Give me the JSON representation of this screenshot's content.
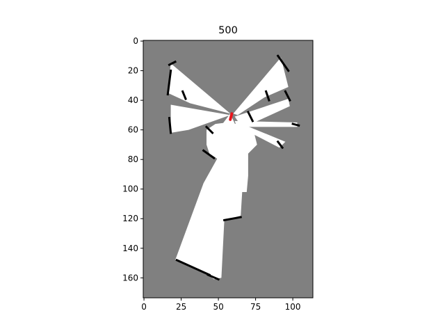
{
  "chart_data": {
    "type": "heatmap",
    "title": "500",
    "xlabel": "",
    "ylabel": "",
    "xlim": [
      -0.5,
      113.5
    ],
    "ylim": [
      173.5,
      -0.5
    ],
    "x_ticks": [
      0,
      25,
      50,
      75,
      100
    ],
    "y_ticks": [
      0,
      20,
      40,
      60,
      80,
      100,
      120,
      140,
      160
    ],
    "grid": false,
    "legend": "none",
    "colors": {
      "unknown": "#808080",
      "free": "#ffffff",
      "occupied": "#000000",
      "robot": "#e8141b"
    },
    "free_regions": [
      {
        "name": "free-region-south-cone",
        "polygon": [
          [
            58,
            49
          ],
          [
            70,
            76
          ],
          [
            70,
            91
          ],
          [
            69,
            102
          ],
          [
            66,
            102
          ],
          [
            65,
            118
          ],
          [
            54,
            121
          ],
          [
            52,
            160
          ],
          [
            47,
            161
          ],
          [
            43,
            158
          ],
          [
            21,
            148
          ],
          [
            40,
            96
          ],
          [
            50,
            78
          ],
          [
            49,
            61
          ]
        ]
      },
      {
        "name": "free-region-northwest-ray",
        "polygon": [
          [
            58,
            49
          ],
          [
            18,
            15
          ],
          [
            16,
            35
          ],
          [
            31,
            42
          ]
        ]
      },
      {
        "name": "free-region-west-ray",
        "polygon": [
          [
            58,
            50
          ],
          [
            18,
            43
          ],
          [
            18,
            62
          ],
          [
            30,
            60
          ]
        ]
      },
      {
        "name": "free-region-northeast-ray",
        "polygon": [
          [
            60,
            49
          ],
          [
            92,
            11
          ],
          [
            97,
            31
          ],
          [
            81,
            38
          ],
          [
            63,
            50
          ]
        ]
      },
      {
        "name": "free-region-east-upper-ray",
        "polygon": [
          [
            61,
            51
          ],
          [
            97,
            39
          ],
          [
            98,
            44
          ],
          [
            72,
            56
          ],
          [
            63,
            54
          ]
        ]
      },
      {
        "name": "free-region-east-ray",
        "polygon": [
          [
            61,
            54
          ],
          [
            103,
            55
          ],
          [
            103,
            58
          ],
          [
            64,
            58
          ]
        ]
      },
      {
        "name": "free-region-southeast-ray",
        "polygon": [
          [
            61,
            54
          ],
          [
            95,
            68
          ],
          [
            91,
            72
          ],
          [
            62,
            57
          ]
        ]
      },
      {
        "name": "free-region-center-blob",
        "polygon": [
          [
            42,
            60
          ],
          [
            48,
            56
          ],
          [
            56,
            55
          ],
          [
            62,
            56
          ],
          [
            70,
            58
          ],
          [
            74,
            62
          ],
          [
            76,
            70
          ],
          [
            70,
            76
          ],
          [
            62,
            78
          ],
          [
            50,
            80
          ],
          [
            44,
            76
          ],
          [
            42,
            70
          ]
        ]
      }
    ],
    "obstacle_segments": [
      {
        "name": "obstacle-nw-top",
        "points": [
          [
            17,
            16
          ],
          [
            21,
            14
          ]
        ]
      },
      {
        "name": "obstacle-nw-left",
        "points": [
          [
            18,
            20
          ],
          [
            16,
            36
          ]
        ]
      },
      {
        "name": "obstacle-nw-inner",
        "points": [
          [
            26,
            34
          ],
          [
            28,
            39
          ]
        ]
      },
      {
        "name": "obstacle-west-left",
        "points": [
          [
            17,
            52
          ],
          [
            18,
            62
          ]
        ]
      },
      {
        "name": "obstacle-ne-top",
        "points": [
          [
            90,
            10
          ],
          [
            97,
            20
          ]
        ]
      },
      {
        "name": "obstacle-ne-mid",
        "points": [
          [
            82,
            34
          ],
          [
            84,
            40
          ]
        ]
      },
      {
        "name": "obstacle-east-upper",
        "points": [
          [
            95,
            34
          ],
          [
            98,
            40
          ]
        ]
      },
      {
        "name": "obstacle-east-end",
        "points": [
          [
            100,
            56
          ],
          [
            104,
            57
          ]
        ]
      },
      {
        "name": "obstacle-east-inner",
        "points": [
          [
            70,
            48
          ],
          [
            73,
            54
          ]
        ]
      },
      {
        "name": "obstacle-southeast",
        "points": [
          [
            90,
            68
          ],
          [
            93,
            72
          ]
        ]
      },
      {
        "name": "obstacle-center-left",
        "points": [
          [
            40,
            74
          ],
          [
            47,
            79
          ]
        ]
      },
      {
        "name": "obstacle-center-upper",
        "points": [
          [
            42,
            58
          ],
          [
            46,
            62
          ]
        ]
      },
      {
        "name": "obstacle-south-ledge",
        "points": [
          [
            54,
            121
          ],
          [
            65,
            119
          ]
        ]
      },
      {
        "name": "obstacle-south-bottom",
        "points": [
          [
            22,
            148
          ],
          [
            44,
            158
          ]
        ]
      },
      {
        "name": "obstacle-south-corner",
        "points": [
          [
            43,
            158
          ],
          [
            50,
            161
          ]
        ]
      }
    ],
    "robot_marker": {
      "points": [
        [
          59,
          49
        ],
        [
          58,
          53
        ]
      ]
    }
  }
}
